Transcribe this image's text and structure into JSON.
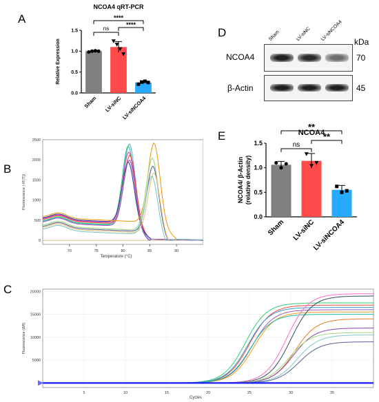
{
  "panels": {
    "A": "A",
    "B": "B",
    "C": "C",
    "D": "D",
    "E": "E"
  },
  "colors": {
    "sham": "#808080",
    "siNC": "#ff4b4b",
    "siNCOA4": "#27aaff",
    "curve_blue": "#1a1aff"
  },
  "chart_data": [
    {
      "id": "A",
      "type": "bar",
      "title": "NCOA4 qRT-PCR",
      "categories": [
        "Sham",
        "LV-siNC",
        "LV-siNCOA4"
      ],
      "values": [
        1.0,
        1.1,
        0.25
      ],
      "errors": [
        0.02,
        0.13,
        0.04
      ],
      "points": [
        [
          0.98,
          1.0,
          1.01,
          1.0
        ],
        [
          1.24,
          1.16,
          1.05,
          0.93
        ],
        [
          0.21,
          0.26,
          0.28,
          0.25
        ]
      ],
      "ylabel": "Relative Expression",
      "ylim": [
        0,
        1.5
      ],
      "yticks": [
        "0.0",
        "0.5",
        "1.0",
        "1.5"
      ],
      "significance": [
        {
          "from": 0,
          "to": 1,
          "label": "ns"
        },
        {
          "from": 1,
          "to": 2,
          "label": "****"
        },
        {
          "from": 0,
          "to": 2,
          "label": "****"
        }
      ]
    },
    {
      "id": "B",
      "type": "line",
      "xlabel": "Temperature (°C)",
      "ylabel": "Fluorescence (-R'(T))",
      "xlim": [
        65,
        95
      ],
      "ylim": [
        -100,
        2500
      ],
      "xticks": [
        "70",
        "75",
        "80",
        "85",
        "90"
      ],
      "yticks": [
        "0",
        "500",
        "1000",
        "1500",
        "2000",
        "2500"
      ],
      "series": [
        {
          "color": "#5ab4e6",
          "peak_x": 81.2,
          "peak": 2400,
          "base": 460
        },
        {
          "color": "#2ecc71",
          "peak_x": 81.0,
          "peak": 2350,
          "base": 470
        },
        {
          "color": "#cc4bc2",
          "peak_x": 81.1,
          "peak": 2200,
          "base": 520
        },
        {
          "color": "#e74c3c",
          "peak_x": 81.3,
          "peak": 2120,
          "base": 500
        },
        {
          "color": "#3d3d9e",
          "peak_x": 81.0,
          "peak": 1950,
          "base": 540
        },
        {
          "color": "#9b59b6",
          "peak_x": 81.2,
          "peak": 2000,
          "base": 440
        },
        {
          "color": "#f39c12",
          "peak_x": 85.8,
          "peak": 2420,
          "base": 570
        },
        {
          "color": "#a0d880",
          "peak_x": 85.5,
          "peak": 2050,
          "base": 360
        },
        {
          "color": "#5b5f97",
          "peak_x": 85.6,
          "peak": 1850,
          "base": 330
        },
        {
          "color": "#e8c07a",
          "peak_x": 85.8,
          "peak": 1680,
          "base": 300
        },
        {
          "color": "#7ec8c8",
          "peak_x": 85.4,
          "peak": 1600,
          "base": 260
        }
      ]
    },
    {
      "id": "C",
      "type": "line",
      "xlabel": "Cycles",
      "ylabel": "Fluorescence (ΔR)",
      "xlim": [
        0,
        40
      ],
      "ylim": [
        -1000,
        20500
      ],
      "xticks": [
        "5",
        "10",
        "15",
        "20",
        "25",
        "30",
        "35"
      ],
      "yticks": [
        "0",
        "5000",
        "10000",
        "15000",
        "20000"
      ],
      "threshold": 0,
      "series": [
        {
          "color": "#2ecc71",
          "ct": 22.0,
          "plateau": 17500
        },
        {
          "color": "#e74c3c",
          "ct": 22.5,
          "plateau": 17000
        },
        {
          "color": "#3498db",
          "ct": 22.3,
          "plateau": 16500
        },
        {
          "color": "#9b59b6",
          "ct": 22.8,
          "plateau": 16000
        },
        {
          "color": "#f39c12",
          "ct": 23.0,
          "plateau": 15500
        },
        {
          "color": "#1abc9c",
          "ct": 22.6,
          "plateau": 15000
        },
        {
          "color": "#ff66cc",
          "ct": 27.0,
          "plateau": 19500
        },
        {
          "color": "#34495e",
          "ct": 27.5,
          "plateau": 19000
        },
        {
          "color": "#e67e22",
          "ct": 28.0,
          "plateau": 14000
        },
        {
          "color": "#8e44ad",
          "ct": 27.8,
          "plateau": 12000
        },
        {
          "color": "#7ec8c8",
          "ct": 28.3,
          "plateau": 10500
        },
        {
          "color": "#5b5f97",
          "ct": 28.5,
          "plateau": 9000
        },
        {
          "color": "#a0d880",
          "ct": 27.3,
          "plateau": 11000
        }
      ]
    },
    {
      "id": "E",
      "type": "bar",
      "title": "NCOA4",
      "categories": [
        "Sham",
        "LV-siNC",
        "LV-siNCOA4"
      ],
      "values": [
        1.06,
        1.14,
        0.55
      ],
      "errors": [
        0.07,
        0.15,
        0.09
      ],
      "points": [
        [
          1.1,
          1.0,
          1.08
        ],
        [
          1.28,
          1.04,
          1.1
        ],
        [
          0.62,
          0.5,
          0.53
        ]
      ],
      "ylabel": "NCOA4/ β-Actin (relative density)",
      "ylim": [
        0,
        1.5
      ],
      "yticks": [
        "0.0",
        "0.5",
        "1.0",
        "1.5"
      ],
      "significance": [
        {
          "from": 0,
          "to": 1,
          "label": "ns"
        },
        {
          "from": 1,
          "to": 2,
          "label": "**"
        },
        {
          "from": 0,
          "to": 2,
          "label": "**"
        }
      ]
    }
  ],
  "western": {
    "lanes": [
      "Sham",
      "LV-siNC",
      "LV-siNCOA4"
    ],
    "unit": "kDa",
    "rows": [
      {
        "label": "NCOA4",
        "kda": "70",
        "intensity": [
          0.95,
          0.9,
          0.6
        ]
      },
      {
        "label": "β-Actin",
        "kda": "45",
        "intensity": [
          0.95,
          0.95,
          0.95
        ]
      }
    ]
  }
}
